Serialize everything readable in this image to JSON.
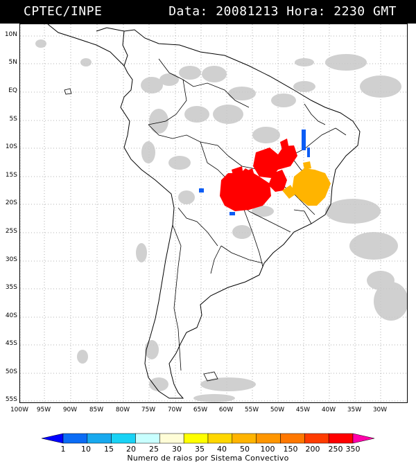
{
  "header": {
    "source": "CPTEC/INPE",
    "date_label": "Data:",
    "date_value": "20081213",
    "time_label": "Hora:",
    "time_value": "2230 GMT"
  },
  "map": {
    "lat_labels": [
      "10N",
      "5N",
      "EQ",
      "5S",
      "10S",
      "15S",
      "20S",
      "25S",
      "30S",
      "35S",
      "40S",
      "45S",
      "50S",
      "55S"
    ],
    "lon_labels": [
      "100W",
      "95W",
      "90W",
      "85W",
      "80W",
      "75W",
      "70W",
      "65W",
      "60W",
      "55W",
      "50W",
      "45W",
      "40W",
      "35W",
      "30W"
    ],
    "region": "South America",
    "layers": [
      "cloud cover (grey)",
      "country/state borders",
      "lightning density (colored)"
    ]
  },
  "legend": {
    "title": "Numero de raios por Sistema Convectivo",
    "ticks": [
      "1",
      "10",
      "15",
      "20",
      "25",
      "30",
      "35",
      "40",
      "50",
      "100",
      "150",
      "200",
      "250",
      "350"
    ],
    "colors": [
      "#0000ff",
      "#0b6cf5",
      "#19a9ee",
      "#19d2f5",
      "#c8ffff",
      "#fffdd7",
      "#ffff00",
      "#ffd700",
      "#ffb400",
      "#ff9600",
      "#ff7800",
      "#ff3c00",
      "#ff0000",
      "#ff00aa"
    ]
  }
}
